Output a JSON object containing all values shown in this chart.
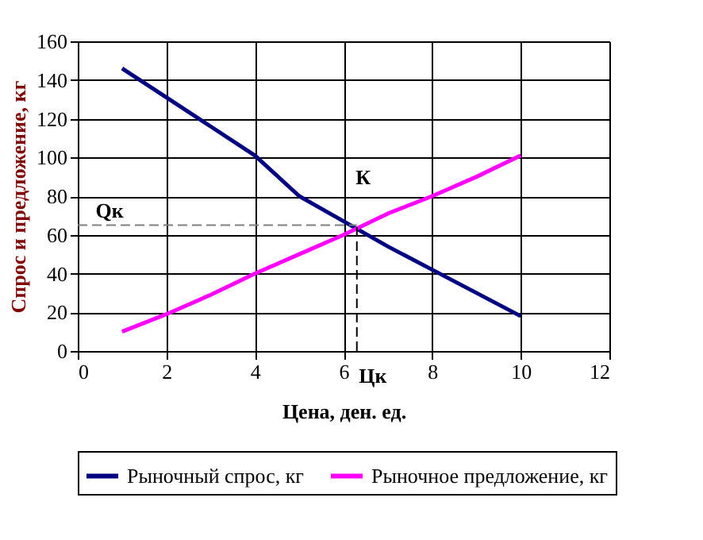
{
  "chart_data": {
    "type": "line",
    "xlabel": "Цена, ден. ед.",
    "ylabel": "Спрос и предложение, кг",
    "x": [
      1,
      2,
      3,
      4,
      5,
      6,
      7,
      8,
      9,
      10
    ],
    "series": [
      {
        "name": "Рыночный спрос, кг",
        "color": "#000080",
        "values": [
          146,
          131,
          116,
          101,
          80,
          67,
          54,
          42,
          30,
          18
        ]
      },
      {
        "name": "Рыночное предложение, кг",
        "color": "#ff00ff",
        "values": [
          10,
          19,
          29,
          40,
          50,
          60,
          71,
          80,
          90,
          101
        ]
      }
    ],
    "xlim": [
      0,
      12
    ],
    "xticks": [
      0,
      2,
      4,
      6,
      8,
      10,
      12
    ],
    "ylim": [
      0,
      160
    ],
    "yticks": [
      0,
      20,
      40,
      60,
      80,
      100,
      120,
      140,
      160
    ],
    "ref_lines": [
      {
        "axis": "y",
        "value": 65,
        "color": "#808080",
        "line_style": "dashed"
      },
      {
        "axis": "x",
        "value": 6.3,
        "color": "#000000",
        "line_style": "dashed"
      }
    ],
    "annotations": [
      "Qк",
      {
        "text": "К",
        "x": 6.3,
        "y": 65
      },
      "Цк"
    ],
    "grid": true,
    "legend": "bottom",
    "marker": "none",
    "line_style": "solid"
  }
}
